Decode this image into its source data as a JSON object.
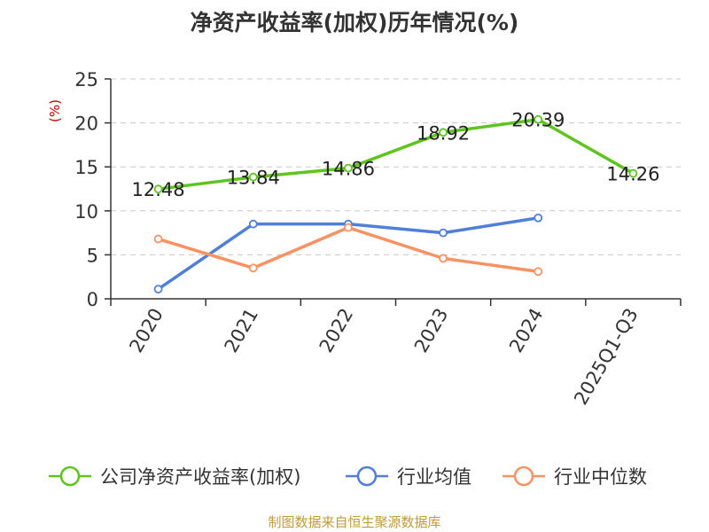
{
  "chart_data": {
    "type": "line",
    "title": "净资产收益率(加权)历年情况(%)",
    "ylabel": "(%)",
    "xlabel": "",
    "categories": [
      "2020",
      "2021",
      "2022",
      "2023",
      "2024",
      "2025Q1-Q3"
    ],
    "ylim": [
      0,
      25
    ],
    "yticks": [
      0,
      5,
      10,
      15,
      20,
      25
    ],
    "grid": true,
    "legend_position": "bottom",
    "series": [
      {
        "name": "公司净资产收益率(加权)",
        "color": "#5fc41f",
        "values": [
          12.48,
          13.84,
          14.86,
          18.92,
          20.39,
          14.26
        ],
        "labels": [
          "12.48",
          "13.84",
          "14.86",
          "18.92",
          "20.39",
          "14.26"
        ]
      },
      {
        "name": "行业均值",
        "color": "#4f7fd9",
        "values": [
          1.1,
          8.5,
          8.5,
          7.5,
          9.2,
          null
        ]
      },
      {
        "name": "行业中位数",
        "color": "#f79363",
        "values": [
          6.8,
          3.5,
          8.1,
          4.6,
          3.1,
          null
        ]
      }
    ]
  },
  "footer": "制图数据来自恒生聚源数据库"
}
